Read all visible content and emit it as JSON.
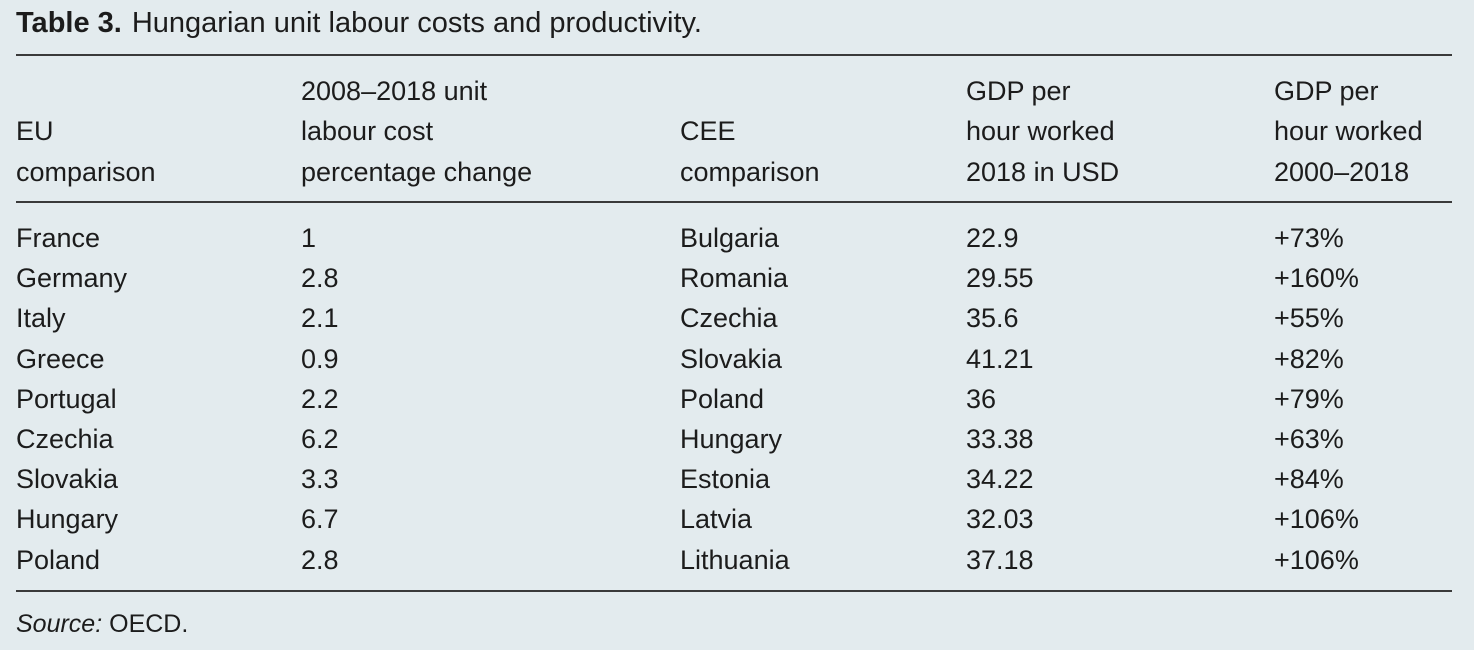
{
  "caption": {
    "label": "Table 3.",
    "text": "Hungarian unit labour costs and productivity."
  },
  "headers": [
    [
      "EU",
      "comparison"
    ],
    [
      "2008–2018 unit",
      "labour cost",
      "percentage change"
    ],
    [
      "CEE",
      "comparison"
    ],
    [
      "GDP per",
      "hour worked",
      "2018 in USD"
    ],
    [
      "GDP per",
      "hour worked",
      "2000–2018"
    ]
  ],
  "rows": [
    [
      "France",
      "1",
      "Bulgaria",
      "22.9",
      "+73%"
    ],
    [
      "Germany",
      "2.8",
      "Romania",
      "29.55",
      "+160%"
    ],
    [
      "Italy",
      "2.1",
      "Czechia",
      "35.6",
      "+55%"
    ],
    [
      "Greece",
      "0.9",
      "Slovakia",
      "41.21",
      "+82%"
    ],
    [
      "Portugal",
      "2.2",
      "Poland",
      "36",
      "+79%"
    ],
    [
      "Czechia",
      "6.2",
      "Hungary",
      "33.38",
      "+63%"
    ],
    [
      "Slovakia",
      "3.3",
      "Estonia",
      "34.22",
      "+84%"
    ],
    [
      "Hungary",
      "6.7",
      "Latvia",
      "32.03",
      "+106%"
    ],
    [
      "Poland",
      "2.8",
      "Lithuania",
      "37.18",
      "+106%"
    ]
  ],
  "source": {
    "label": "Source:",
    "text": "OECD."
  }
}
